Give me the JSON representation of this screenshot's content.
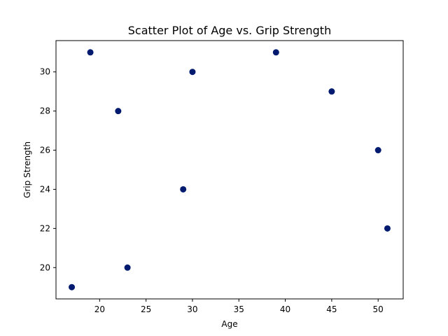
{
  "chart_data": {
    "type": "scatter",
    "title": "Scatter Plot of Age vs. Grip Strength",
    "xlabel": "Age",
    "ylabel": "Grip Strength",
    "xlim": [
      15.3,
      52.7
    ],
    "ylim": [
      18.4,
      31.6
    ],
    "xticks": [
      20,
      25,
      30,
      35,
      40,
      45,
      50
    ],
    "yticks": [
      20,
      22,
      24,
      26,
      28,
      30
    ],
    "grid": false,
    "marker_color": "#001a70",
    "points": [
      {
        "x": 17,
        "y": 19
      },
      {
        "x": 19,
        "y": 31
      },
      {
        "x": 22,
        "y": 28
      },
      {
        "x": 23,
        "y": 20
      },
      {
        "x": 29,
        "y": 24
      },
      {
        "x": 30,
        "y": 30
      },
      {
        "x": 39,
        "y": 31
      },
      {
        "x": 45,
        "y": 29
      },
      {
        "x": 50,
        "y": 26
      },
      {
        "x": 51,
        "y": 22
      }
    ]
  }
}
